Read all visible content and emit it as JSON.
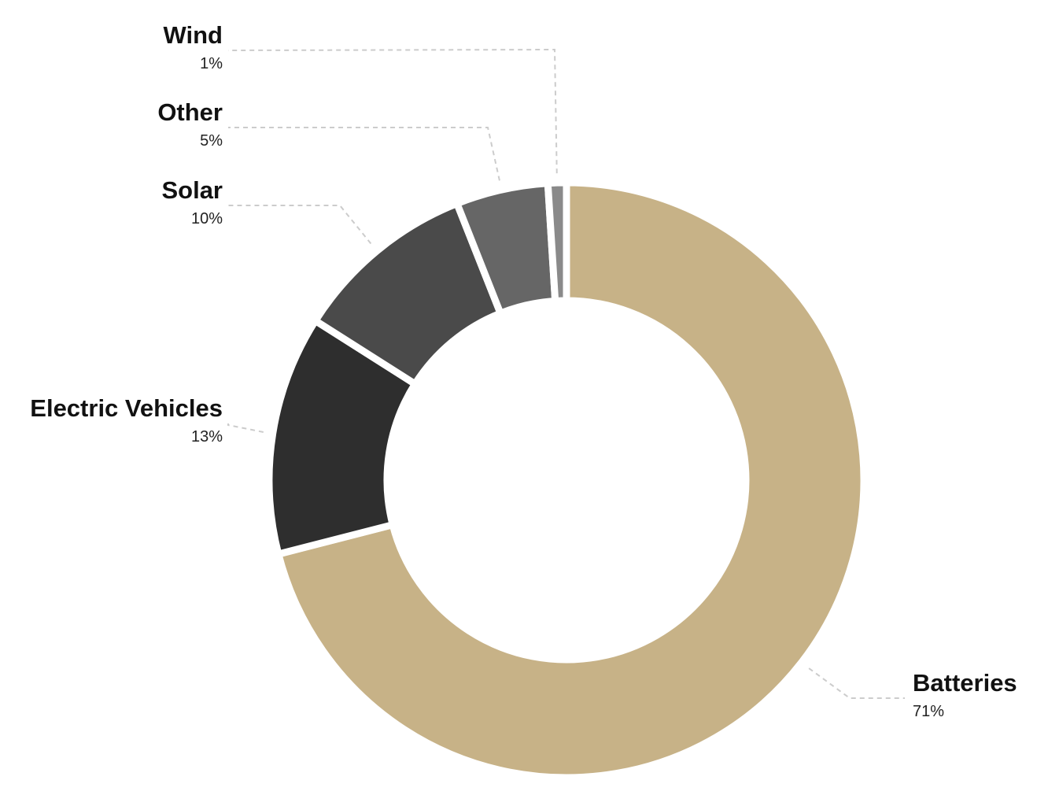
{
  "chart_data": {
    "type": "donut",
    "categories": [
      "Batteries",
      "Electric Vehicles",
      "Solar",
      "Other",
      "Wind"
    ],
    "values": [
      71,
      13,
      10,
      5,
      1
    ],
    "value_labels": [
      "71%",
      "13%",
      "10%",
      "5%",
      "1%"
    ],
    "colors": [
      "#c7b287",
      "#2e2e2e",
      "#4a4a4a",
      "#666666",
      "#8a8a8a"
    ]
  }
}
